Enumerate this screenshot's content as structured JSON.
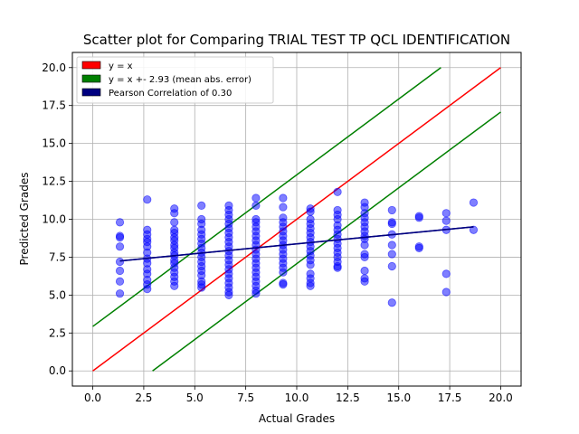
{
  "chart_data": {
    "type": "scatter",
    "title": "Scatter plot for Comparing TRIAL TEST TP QCL IDENTIFICATION",
    "xlabel": "Actual Grades",
    "ylabel": "Predicted Grades",
    "xlim": [
      -1.0,
      21.0
    ],
    "ylim": [
      -1.0,
      21.0
    ],
    "xticks": [
      "0.0",
      "2.5",
      "5.0",
      "7.5",
      "10.0",
      "12.5",
      "15.0",
      "17.5",
      "20.0"
    ],
    "yticks": [
      "0.0",
      "2.5",
      "5.0",
      "7.5",
      "10.0",
      "12.5",
      "15.0",
      "17.5",
      "20.0"
    ],
    "xtick_values": [
      0,
      2.5,
      5,
      7.5,
      10,
      12.5,
      15,
      17.5,
      20
    ],
    "ytick_values": [
      0,
      2.5,
      5,
      7.5,
      10,
      12.5,
      15,
      17.5,
      20
    ],
    "grid": true,
    "legend_position": "top-left",
    "legend": [
      {
        "label": "y = x",
        "color": "#ff0000"
      },
      {
        "label": "y = x +- 2.93 (mean abs. error)",
        "color": "#008000"
      },
      {
        "label": "Pearson Correlation of 0.30",
        "color": "#000080"
      }
    ],
    "points_color": "#0000ff",
    "lines": [
      {
        "color": "#ff0000",
        "x": [
          0,
          20
        ],
        "y": [
          0,
          20
        ]
      },
      {
        "color": "#008000",
        "x": [
          0,
          17.07
        ],
        "y": [
          2.93,
          20
        ]
      },
      {
        "color": "#008000",
        "x": [
          2.93,
          20
        ],
        "y": [
          0,
          17.07
        ]
      },
      {
        "color": "#000080",
        "x": [
          1.33,
          18.67
        ],
        "y": [
          7.25,
          9.5
        ]
      }
    ],
    "points": [
      [
        1.33,
        9.8
      ],
      [
        1.33,
        8.9
      ],
      [
        1.33,
        8.8
      ],
      [
        1.33,
        8.2
      ],
      [
        1.33,
        7.2
      ],
      [
        1.33,
        6.6
      ],
      [
        1.33,
        5.9
      ],
      [
        1.33,
        5.1
      ],
      [
        2.67,
        11.3
      ],
      [
        2.67,
        9.3
      ],
      [
        2.67,
        9.0
      ],
      [
        2.67,
        8.7
      ],
      [
        2.67,
        8.5
      ],
      [
        2.67,
        8.2
      ],
      [
        2.67,
        7.8
      ],
      [
        2.67,
        7.4
      ],
      [
        2.67,
        7.1
      ],
      [
        2.67,
        6.7
      ],
      [
        2.67,
        6.4
      ],
      [
        2.67,
        6.0
      ],
      [
        2.67,
        5.7
      ],
      [
        2.67,
        5.4
      ],
      [
        4.0,
        10.7
      ],
      [
        4.0,
        10.4
      ],
      [
        4.0,
        9.8
      ],
      [
        4.0,
        9.3
      ],
      [
        4.0,
        9.1
      ],
      [
        4.0,
        8.8
      ],
      [
        4.0,
        8.6
      ],
      [
        4.0,
        8.3
      ],
      [
        4.0,
        8.1
      ],
      [
        4.0,
        7.8
      ],
      [
        4.0,
        7.6
      ],
      [
        4.0,
        7.3
      ],
      [
        4.0,
        7.1
      ],
      [
        4.0,
        6.8
      ],
      [
        4.0,
        6.5
      ],
      [
        4.0,
        6.2
      ],
      [
        4.0,
        5.9
      ],
      [
        4.0,
        5.6
      ],
      [
        5.33,
        10.9
      ],
      [
        5.33,
        10.0
      ],
      [
        5.33,
        9.7
      ],
      [
        5.33,
        9.3
      ],
      [
        5.33,
        9.0
      ],
      [
        5.33,
        8.7
      ],
      [
        5.33,
        8.4
      ],
      [
        5.33,
        8.1
      ],
      [
        5.33,
        7.8
      ],
      [
        5.33,
        7.5
      ],
      [
        5.33,
        7.2
      ],
      [
        5.33,
        6.9
      ],
      [
        5.33,
        6.6
      ],
      [
        5.33,
        6.3
      ],
      [
        5.33,
        5.9
      ],
      [
        5.33,
        5.7
      ],
      [
        5.33,
        5.5
      ],
      [
        6.67,
        10.9
      ],
      [
        6.67,
        10.6
      ],
      [
        6.67,
        10.3
      ],
      [
        6.67,
        10.0
      ],
      [
        6.67,
        9.7
      ],
      [
        6.67,
        9.4
      ],
      [
        6.67,
        9.1
      ],
      [
        6.67,
        8.8
      ],
      [
        6.67,
        8.5
      ],
      [
        6.67,
        8.2
      ],
      [
        6.67,
        7.9
      ],
      [
        6.67,
        7.6
      ],
      [
        6.67,
        7.3
      ],
      [
        6.67,
        7.0
      ],
      [
        6.67,
        6.7
      ],
      [
        6.67,
        6.4
      ],
      [
        6.67,
        6.1
      ],
      [
        6.67,
        5.8
      ],
      [
        6.67,
        5.5
      ],
      [
        6.67,
        5.2
      ],
      [
        6.67,
        5.0
      ],
      [
        8.0,
        11.4
      ],
      [
        8.0,
        10.9
      ],
      [
        8.0,
        10.0
      ],
      [
        8.0,
        9.8
      ],
      [
        8.0,
        9.5
      ],
      [
        8.0,
        9.2
      ],
      [
        8.0,
        8.9
      ],
      [
        8.0,
        8.6
      ],
      [
        8.0,
        8.3
      ],
      [
        8.0,
        8.0
      ],
      [
        8.0,
        7.7
      ],
      [
        8.0,
        7.4
      ],
      [
        8.0,
        7.1
      ],
      [
        8.0,
        6.8
      ],
      [
        8.0,
        6.5
      ],
      [
        8.0,
        6.2
      ],
      [
        8.0,
        5.9
      ],
      [
        8.0,
        5.6
      ],
      [
        8.0,
        5.3
      ],
      [
        8.0,
        5.1
      ],
      [
        9.33,
        11.4
      ],
      [
        9.33,
        10.8
      ],
      [
        9.33,
        10.1
      ],
      [
        9.33,
        9.8
      ],
      [
        9.33,
        9.5
      ],
      [
        9.33,
        9.2
      ],
      [
        9.33,
        8.9
      ],
      [
        9.33,
        8.6
      ],
      [
        9.33,
        8.3
      ],
      [
        9.33,
        8.0
      ],
      [
        9.33,
        7.7
      ],
      [
        9.33,
        7.4
      ],
      [
        9.33,
        7.1
      ],
      [
        9.33,
        6.8
      ],
      [
        9.33,
        6.5
      ],
      [
        9.33,
        5.8
      ],
      [
        9.33,
        5.7
      ],
      [
        10.67,
        10.7
      ],
      [
        10.67,
        10.5
      ],
      [
        10.67,
        10.0
      ],
      [
        10.67,
        9.7
      ],
      [
        10.67,
        9.4
      ],
      [
        10.67,
        9.1
      ],
      [
        10.67,
        8.8
      ],
      [
        10.67,
        8.5
      ],
      [
        10.67,
        8.2
      ],
      [
        10.67,
        7.9
      ],
      [
        10.67,
        7.6
      ],
      [
        10.67,
        7.3
      ],
      [
        10.67,
        7.0
      ],
      [
        10.67,
        6.4
      ],
      [
        10.67,
        6.1
      ],
      [
        10.67,
        5.8
      ],
      [
        10.67,
        5.6
      ],
      [
        12.0,
        11.8
      ],
      [
        12.0,
        10.6
      ],
      [
        12.0,
        10.3
      ],
      [
        12.0,
        10.0
      ],
      [
        12.0,
        9.6
      ],
      [
        12.0,
        9.3
      ],
      [
        12.0,
        9.0
      ],
      [
        12.0,
        8.7
      ],
      [
        12.0,
        8.4
      ],
      [
        12.0,
        8.1
      ],
      [
        12.0,
        7.8
      ],
      [
        12.0,
        7.5
      ],
      [
        12.0,
        7.2
      ],
      [
        12.0,
        6.9
      ],
      [
        12.0,
        6.8
      ],
      [
        13.33,
        11.1
      ],
      [
        13.33,
        10.8
      ],
      [
        13.33,
        10.4
      ],
      [
        13.33,
        10.1
      ],
      [
        13.33,
        9.8
      ],
      [
        13.33,
        9.5
      ],
      [
        13.33,
        9.2
      ],
      [
        13.33,
        8.9
      ],
      [
        13.33,
        8.7
      ],
      [
        13.33,
        8.3
      ],
      [
        13.33,
        7.7
      ],
      [
        13.33,
        7.5
      ],
      [
        13.33,
        6.6
      ],
      [
        13.33,
        6.1
      ],
      [
        13.33,
        5.9
      ],
      [
        14.67,
        10.6
      ],
      [
        14.67,
        9.8
      ],
      [
        14.67,
        9.7
      ],
      [
        14.67,
        9.0
      ],
      [
        14.67,
        8.3
      ],
      [
        14.67,
        7.7
      ],
      [
        14.67,
        6.9
      ],
      [
        14.67,
        4.5
      ],
      [
        16.0,
        10.2
      ],
      [
        16.0,
        10.1
      ],
      [
        16.0,
        8.2
      ],
      [
        16.0,
        8.1
      ],
      [
        17.33,
        10.4
      ],
      [
        17.33,
        9.9
      ],
      [
        17.33,
        9.3
      ],
      [
        17.33,
        6.4
      ],
      [
        17.33,
        5.2
      ],
      [
        18.67,
        11.1
      ],
      [
        18.67,
        9.3
      ]
    ]
  }
}
